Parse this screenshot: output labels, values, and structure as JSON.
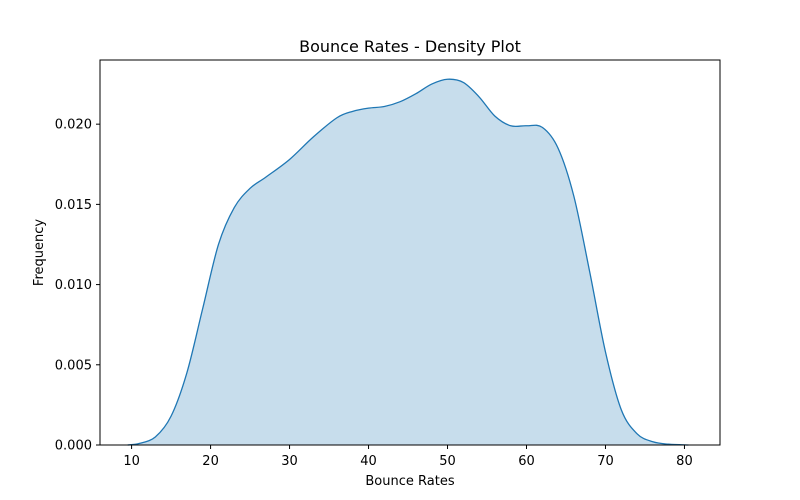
{
  "chart_data": {
    "type": "area",
    "title": "Bounce Rates - Density Plot",
    "xlabel": "Bounce Rates",
    "ylabel": "Frequency",
    "xlim": [
      6,
      84.5
    ],
    "ylim": [
      0,
      0.024
    ],
    "xticks": [
      10,
      20,
      30,
      40,
      50,
      60,
      70,
      80
    ],
    "xtick_labels": [
      "10",
      "20",
      "30",
      "40",
      "50",
      "60",
      "70",
      "80"
    ],
    "yticks": [
      0.0,
      0.005,
      0.01,
      0.015,
      0.02
    ],
    "ytick_labels": [
      "0.000",
      "0.005",
      "0.010",
      "0.015",
      "0.020"
    ],
    "grid": false,
    "series": [
      {
        "color": "#1f77b4",
        "fill_color": "#1f77b4",
        "fill_opacity": 0.25,
        "x": [
          9.5,
          11,
          13,
          15,
          17,
          19,
          21,
          23,
          25,
          27,
          30,
          33,
          36,
          38,
          40,
          42,
          44,
          46,
          48,
          50,
          52,
          54,
          56,
          58,
          60,
          62,
          64,
          66,
          68,
          70,
          72,
          74,
          76,
          78,
          80.5
        ],
        "y": [
          0.0,
          0.0001,
          0.0005,
          0.0018,
          0.0045,
          0.0085,
          0.0125,
          0.0148,
          0.016,
          0.0167,
          0.0178,
          0.0192,
          0.0204,
          0.0208,
          0.021,
          0.0211,
          0.0214,
          0.0219,
          0.0225,
          0.0228,
          0.0226,
          0.0217,
          0.0205,
          0.0199,
          0.0199,
          0.0198,
          0.0185,
          0.0155,
          0.0108,
          0.0058,
          0.0022,
          0.0007,
          0.0002,
          5e-05,
          0.0
        ]
      }
    ]
  }
}
